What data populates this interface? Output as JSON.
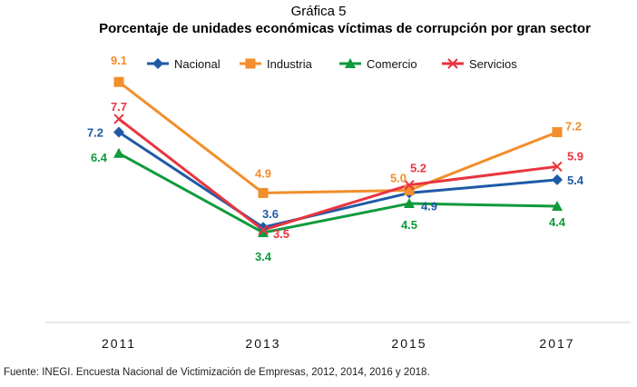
{
  "supertitle": "Gráfica 5",
  "source_note": "Fuente: INEGI. Encuesta Nacional de Victimización de Empresas, 2012, 2014, 2016 y 2018.",
  "chart_data": {
    "type": "line",
    "title": "Porcentaje de unidades económicas víctimas de corrupción por gran sector",
    "xlabel": "",
    "ylabel": "",
    "categories": [
      "2011",
      "2013",
      "2015",
      "2017"
    ],
    "ylim": [
      0,
      10
    ],
    "grid": false,
    "legend": "top",
    "series": [
      {
        "name": "Nacional",
        "values": [
          7.2,
          3.6,
          4.9,
          5.4
        ],
        "labels": [
          "7.2",
          "3.6",
          "4.9",
          "5.4"
        ],
        "color": "#1f5aa6",
        "marker": "diamond"
      },
      {
        "name": "Industria",
        "values": [
          9.1,
          4.9,
          5.0,
          7.2
        ],
        "labels": [
          "9.1",
          "4.9",
          "5.0",
          "7.2"
        ],
        "color": "#f28e2b",
        "marker": "square"
      },
      {
        "name": "Comercio",
        "values": [
          6.4,
          3.4,
          4.5,
          4.4
        ],
        "labels": [
          "6.4",
          "3.4",
          "4.5",
          "4.4"
        ],
        "color": "#0f9a3b",
        "marker": "triangle"
      },
      {
        "name": "Servicios",
        "values": [
          7.7,
          3.5,
          5.2,
          5.9
        ],
        "labels": [
          "7.7",
          "3.5",
          "5.2",
          "5.9"
        ],
        "color": "#e8343f",
        "marker": "x"
      }
    ]
  }
}
